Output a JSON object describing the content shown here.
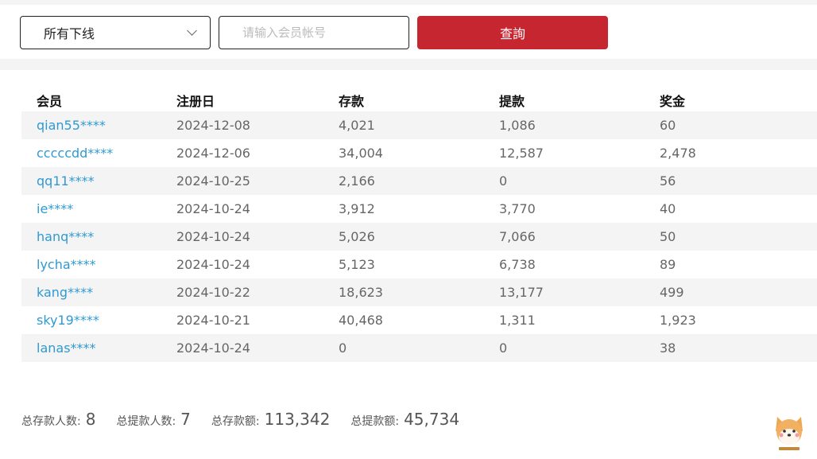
{
  "filters": {
    "downline_select": "所有下线",
    "member_input_placeholder": "请输入会员帐号",
    "member_input_value": "",
    "search_button": "查詢"
  },
  "table": {
    "headers": [
      "会员",
      "注册日",
      "存款",
      "提款",
      "奖金"
    ],
    "rows": [
      [
        "qian55****",
        "2024-12-08",
        "4,021",
        "1,086",
        "60"
      ],
      [
        "cccccdd****",
        "2024-12-06",
        "34,004",
        "12,587",
        "2,478"
      ],
      [
        "qq11****",
        "2024-10-25",
        "2,166",
        "0",
        "56"
      ],
      [
        "ie****",
        "2024-10-24",
        "3,912",
        "3,770",
        "40"
      ],
      [
        "hanq****",
        "2024-10-24",
        "5,026",
        "7,066",
        "50"
      ],
      [
        "lycha****",
        "2024-10-24",
        "5,123",
        "6,738",
        "89"
      ],
      [
        "kang****",
        "2024-10-22",
        "18,623",
        "13,177",
        "499"
      ],
      [
        "sky19****",
        "2024-10-21",
        "40,468",
        "1,311",
        "1,923"
      ],
      [
        "lanas****",
        "2024-10-24",
        "0",
        "0",
        "38"
      ]
    ]
  },
  "summary": [
    {
      "label": "总存款人数:",
      "value": "8"
    },
    {
      "label": "总提款人数:",
      "value": "7"
    },
    {
      "label": "总存款额:",
      "value": "113,342"
    },
    {
      "label": "总提款额:",
      "value": "45,734"
    }
  ],
  "colors": {
    "accent": "#c52630",
    "link": "#2f9ad2",
    "stripe": "#f4f4f4"
  },
  "icons": {
    "mascot": "shiba-dog-mascot-icon",
    "select": "chevron-down-icon"
  }
}
